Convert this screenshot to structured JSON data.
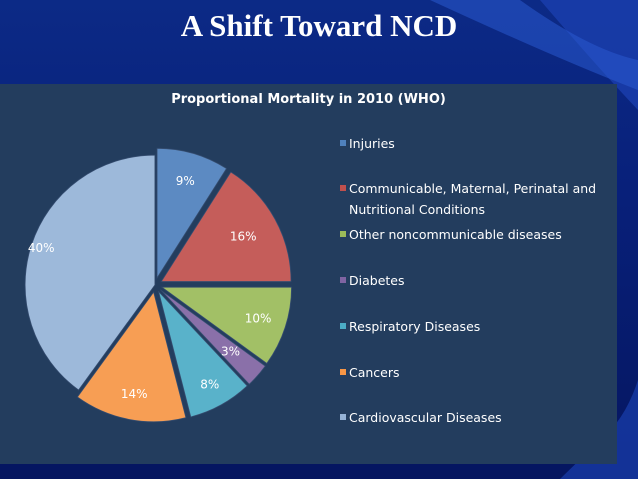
{
  "slide": {
    "title": "A Shift Toward NCD"
  },
  "chart_data": {
    "type": "pie",
    "title": "Proportional Mortality in 2010 (WHO)",
    "labels": [
      "Injuries",
      "Communicable, Maternal, Perinatal and Nutritional Conditions",
      "Other noncommunicable diseases",
      "Diabetes",
      "Respiratory Diseases",
      "Cancers",
      "Cardiovascular Diseases"
    ],
    "values": [
      9,
      16,
      10,
      3,
      8,
      14,
      40
    ],
    "value_labels": [
      "9%",
      "16%",
      "10%",
      "3%",
      "8%",
      "14%",
      "40%"
    ],
    "colors": [
      "#4f81bd",
      "#c0504d",
      "#9bbb59",
      "#8064a2",
      "#4bacc6",
      "#f79646",
      "#95b3d7"
    ],
    "exploded": true,
    "legend_position": "right"
  }
}
